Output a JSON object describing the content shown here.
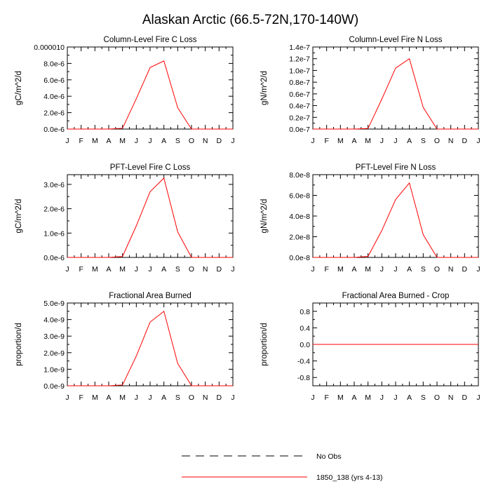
{
  "title": "Alaskan Arctic (66.5-72N,170-140W)",
  "chart_data": [
    {
      "type": "line",
      "title": "Column-Level Fire C Loss",
      "ylabel": "gC/m^2/d",
      "categories": [
        "J",
        "F",
        "M",
        "A",
        "M",
        "J",
        "J",
        "A",
        "S",
        "O",
        "N",
        "D",
        "J"
      ],
      "ylim": [
        0,
        1e-05
      ],
      "yticks": [
        0,
        2e-06,
        4e-06,
        6e-06,
        8e-06,
        1e-05
      ],
      "ytick_labels": [
        "0.0e-6",
        "2.0e-6",
        "4.0e-6",
        "6.0e-6",
        "8.0e-6",
        "0.000010"
      ],
      "series": [
        {
          "name": "1850_138 (yrs 4-13)",
          "color": "#ff0000",
          "values": [
            0,
            0,
            0,
            0,
            1e-07,
            3.7e-06,
            7.5e-06,
            8.3e-06,
            2.6e-06,
            0,
            0,
            0,
            0
          ]
        }
      ]
    },
    {
      "type": "line",
      "title": "Column-Level Fire N Loss",
      "ylabel": "gN/m^2/d",
      "categories": [
        "J",
        "F",
        "M",
        "A",
        "M",
        "J",
        "J",
        "A",
        "S",
        "O",
        "N",
        "D",
        "J"
      ],
      "ylim": [
        0,
        1.4e-07
      ],
      "yticks": [
        0,
        2e-08,
        4e-08,
        6e-08,
        8e-08,
        1e-07,
        1.2e-07,
        1.4e-07
      ],
      "ytick_labels": [
        "0.0e-7",
        "0.2e-7",
        "0.4e-7",
        "0.6e-7",
        "0.8e-7",
        "1.0e-7",
        "1.2e-7",
        "1.4e-7"
      ],
      "series": [
        {
          "name": "1850_138 (yrs 4-13)",
          "color": "#ff0000",
          "values": [
            0,
            0,
            0,
            0,
            1e-09,
            5.1e-08,
            1.04e-07,
            1.2e-07,
            3.7e-08,
            0,
            0,
            0,
            0
          ]
        }
      ]
    },
    {
      "type": "line",
      "title": "PFT-Level Fire C Loss",
      "ylabel": "gC/m^2/d",
      "categories": [
        "J",
        "F",
        "M",
        "A",
        "M",
        "J",
        "J",
        "A",
        "S",
        "O",
        "N",
        "D",
        "J"
      ],
      "ylim": [
        0,
        3.4e-06
      ],
      "yticks": [
        0,
        1e-06,
        2e-06,
        3e-06
      ],
      "ytick_labels": [
        "0.0e-6",
        "1.0e-6",
        "2.0e-6",
        "3.0e-6"
      ],
      "series": [
        {
          "name": "1850_138 (yrs 4-13)",
          "color": "#ff0000",
          "values": [
            0,
            0,
            0,
            0,
            4e-08,
            1.3e-06,
            2.7e-06,
            3.26e-06,
            1.05e-06,
            0,
            0,
            0,
            0
          ]
        }
      ]
    },
    {
      "type": "line",
      "title": "PFT-Level Fire N Loss",
      "ylabel": "gN/m^2/d",
      "categories": [
        "J",
        "F",
        "M",
        "A",
        "M",
        "J",
        "J",
        "A",
        "S",
        "O",
        "N",
        "D",
        "J"
      ],
      "ylim": [
        0,
        8e-08
      ],
      "yticks": [
        0,
        2e-08,
        4e-08,
        6e-08,
        8e-08
      ],
      "ytick_labels": [
        "0.0e-8",
        "2.0e-8",
        "4.0e-8",
        "6.0e-8",
        "8.0e-8"
      ],
      "series": [
        {
          "name": "1850_138 (yrs 4-13)",
          "color": "#ff0000",
          "values": [
            0,
            0,
            0,
            0,
            1e-09,
            2.6e-08,
            5.6e-08,
            7.2e-08,
            2.2e-08,
            0,
            0,
            0,
            0
          ]
        }
      ]
    },
    {
      "type": "line",
      "title": "Fractional Area Burned",
      "ylabel": "proportion/d",
      "categories": [
        "J",
        "F",
        "M",
        "A",
        "M",
        "J",
        "J",
        "A",
        "S",
        "O",
        "N",
        "D",
        "J"
      ],
      "ylim": [
        0,
        5e-09
      ],
      "yticks": [
        0,
        1e-09,
        2e-09,
        3e-09,
        4e-09,
        5e-09
      ],
      "ytick_labels": [
        "0.0e-9",
        "1.0e-9",
        "2.0e-9",
        "3.0e-9",
        "4.0e-9",
        "5.0e-9"
      ],
      "series": [
        {
          "name": "1850_138 (yrs 4-13)",
          "color": "#ff0000",
          "values": [
            0,
            0,
            0,
            0,
            5e-11,
            1.8e-09,
            3.85e-09,
            4.5e-09,
            1.35e-09,
            0,
            0,
            0,
            0
          ]
        }
      ]
    },
    {
      "type": "line",
      "title": "Fractional Area Burned - Crop",
      "ylabel": "proportion/d",
      "categories": [
        "J",
        "F",
        "M",
        "A",
        "M",
        "J",
        "J",
        "A",
        "S",
        "O",
        "N",
        "D",
        "J"
      ],
      "ylim": [
        -1.0,
        1.0
      ],
      "yticks": [
        -0.8,
        -0.4,
        0.0,
        0.4,
        0.8
      ],
      "ytick_labels": [
        "-0.8",
        "-0.4",
        "0.0",
        "0.4",
        "0.8"
      ],
      "series": [
        {
          "name": "1850_138 (yrs 4-13)",
          "color": "#ff0000",
          "values": [
            0,
            0,
            0,
            0,
            0,
            0,
            0,
            0,
            0,
            0,
            0,
            0,
            0
          ]
        }
      ]
    }
  ],
  "legend": [
    {
      "label": "No Obs",
      "style": "dashed",
      "color": "#000000"
    },
    {
      "label": "1850_138 (yrs 4-13)",
      "style": "solid",
      "color": "#ff0000"
    }
  ]
}
